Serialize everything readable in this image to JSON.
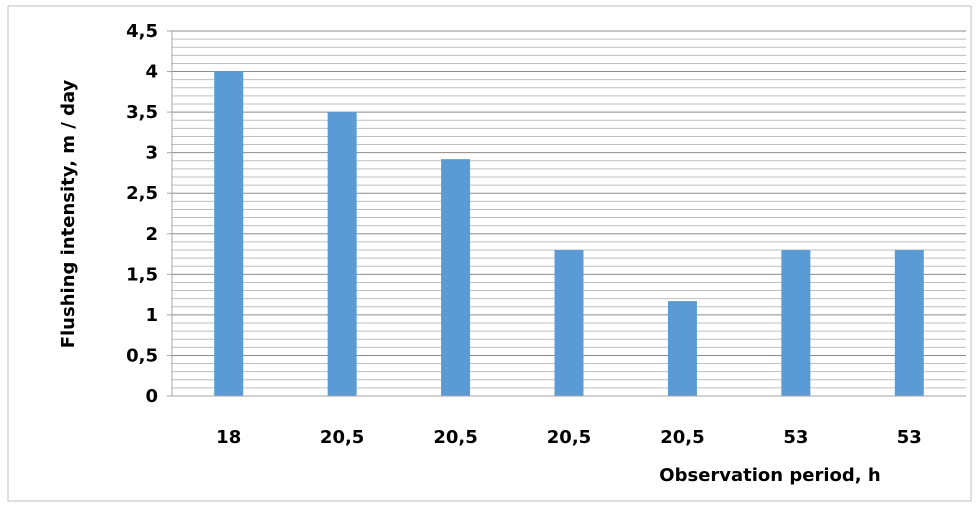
{
  "chart_data": {
    "type": "bar",
    "categories": [
      "18",
      "20,5",
      "20,5",
      "20,5",
      "20,5",
      "53",
      "53"
    ],
    "values": [
      4.0,
      3.5,
      2.92,
      1.8,
      1.17,
      1.8,
      1.8
    ],
    "title": "",
    "xlabel": "Observation period, h",
    "ylabel": "Flushing intensity, m / day",
    "ylim": [
      0,
      4.5
    ],
    "y_ticks": [
      0,
      0.5,
      1,
      1.5,
      2,
      2.5,
      3,
      3.5,
      4,
      4.5
    ],
    "y_tick_labels": [
      "0",
      "0,5",
      "1",
      "1,5",
      "2",
      "2,5",
      "3",
      "3,5",
      "4",
      "4,5"
    ],
    "grid": true,
    "legend": "none",
    "colors": {
      "bar": "#5b9bd5",
      "grid": "#a6a6a6",
      "axis": "#a6a6a6",
      "frame": "#bfbfbf"
    }
  }
}
